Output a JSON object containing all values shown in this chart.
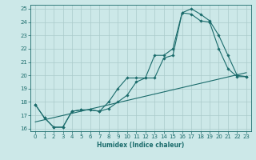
{
  "xlabel": "Humidex (Indice chaleur)",
  "bg_color": "#cce8e8",
  "grid_color": "#aacaca",
  "line_color": "#1a6b6b",
  "xlim": [
    -0.5,
    23.5
  ],
  "ylim": [
    15.8,
    25.3
  ],
  "xticks": [
    0,
    1,
    2,
    3,
    4,
    5,
    6,
    7,
    8,
    9,
    10,
    11,
    12,
    13,
    14,
    15,
    16,
    17,
    18,
    19,
    20,
    21,
    22,
    23
  ],
  "yticks": [
    16,
    17,
    18,
    19,
    20,
    21,
    22,
    23,
    24,
    25
  ],
  "line1_x": [
    0,
    1,
    2,
    3,
    4,
    5,
    6,
    7,
    8,
    9,
    10,
    11,
    12,
    13,
    14,
    15,
    16,
    17,
    18,
    19,
    20,
    21,
    22,
    23
  ],
  "line1_y": [
    17.8,
    16.8,
    16.1,
    16.1,
    17.3,
    17.4,
    17.4,
    17.3,
    17.5,
    18.0,
    18.5,
    19.5,
    19.8,
    19.8,
    21.3,
    21.5,
    24.7,
    25.0,
    24.6,
    24.1,
    23.0,
    21.5,
    20.0,
    19.9
  ],
  "line2_x": [
    0,
    1,
    2,
    3,
    4,
    5,
    6,
    7,
    8,
    9,
    10,
    11,
    12,
    13,
    14,
    15,
    16,
    17,
    18,
    19,
    20,
    21,
    22,
    23
  ],
  "line2_y": [
    17.8,
    16.8,
    16.1,
    16.1,
    17.3,
    17.4,
    17.4,
    17.3,
    18.0,
    19.0,
    19.8,
    19.8,
    19.8,
    21.5,
    21.5,
    22.0,
    24.7,
    24.6,
    24.1,
    24.0,
    22.0,
    20.5,
    19.9,
    19.9
  ],
  "line3_x": [
    0,
    23
  ],
  "line3_y": [
    16.5,
    20.2
  ],
  "marker_style": "D",
  "marker_size": 1.8,
  "line_width": 0.8,
  "tick_labelsize": 5,
  "xlabel_fontsize": 5.5,
  "xlabel_fontweight": "bold"
}
